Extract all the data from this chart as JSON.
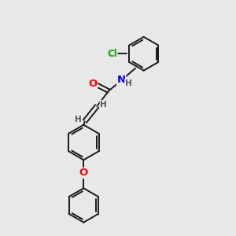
{
  "bg_color": "#e8e8e8",
  "bond_color": "#1a1a1a",
  "bond_width": 1.4,
  "atom_colors": {
    "O": "#ff0000",
    "N": "#0000ff",
    "Cl": "#00aa00",
    "H": "#555555",
    "C": "#1a1a1a"
  },
  "font_size": 8.5
}
